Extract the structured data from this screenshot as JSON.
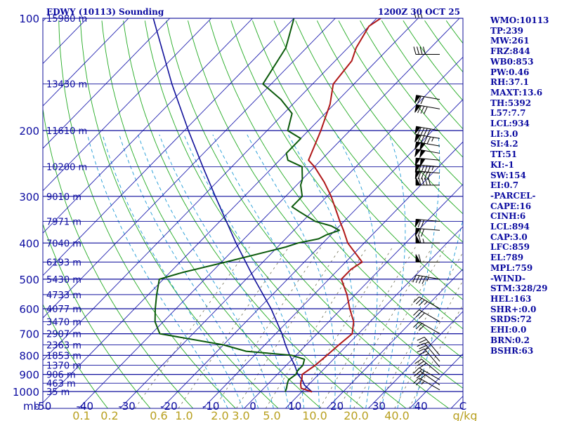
{
  "header": {
    "title": "EDWY (10113) Sounding",
    "time": "1200Z 30 OCT 25"
  },
  "colors": {
    "frame": "#10109a",
    "isobar": "#0e0e9c",
    "isotherm": "#2222b0",
    "dry_adiabat": "#22aa22",
    "moist_adiabat": "#1e9ad6",
    "mixing_ratio": "#6e6e52",
    "temperature": "#b01818",
    "dewpoint": "#0b5a0b",
    "parcel": "#10109a",
    "wind_barb": "#000000",
    "mixing_label": "#b8a020"
  },
  "side_panel": [
    "WMO:10113",
    "TP:239",
    "MW:261",
    "FRZ:844",
    "WB0:853",
    "PW:0.46",
    "RH:37.1",
    "MAXT:13.6",
    "TH:5392",
    "L57:7.7",
    "LCL:934",
    "LI:3.0",
    "SI:4.2",
    "TT:51",
    "KI:-1",
    "SW:154",
    "EI:0.7",
    "-PARCEL-",
    "CAPE:16",
    "CINH:6",
    "LCL:894",
    "CAP:3.0",
    "LFC:859",
    "EL:789",
    "MPL:759",
    "-WIND-",
    "STM:328/29",
    "HEL:163",
    "SHR+:0.0",
    "SRDS:72",
    "EHI:0.0",
    "BRN:0.2",
    "BSHR:63"
  ],
  "chart_data": {
    "type": "skew-t",
    "pressure_unit": "mb",
    "pressure_ticks": [
      100,
      200,
      300,
      400,
      500,
      600,
      700,
      800,
      900,
      1000
    ],
    "temperature_ticks": [
      "-50",
      "-40",
      "-30",
      "-20",
      "-10",
      "0",
      "10",
      "20",
      "30",
      "40",
      "C"
    ],
    "mixing_ratio_labels": [
      "0.1",
      "0.2",
      "0.6",
      "1.0",
      "2.0",
      "3.0",
      "5.0",
      "10.0",
      "20.0",
      "40.0",
      "g/kg"
    ],
    "height_labels": [
      {
        "p": 100,
        "h": "15980 m"
      },
      {
        "p": 150,
        "h": "13430 m"
      },
      {
        "p": 200,
        "h": "11610 m"
      },
      {
        "p": 250,
        "h": "10200 m"
      },
      {
        "p": 300,
        "h": "9010 m"
      },
      {
        "p": 350,
        "h": "7971 m"
      },
      {
        "p": 400,
        "h": "7040 m"
      },
      {
        "p": 450,
        "h": "6193 m"
      },
      {
        "p": 500,
        "h": "5430 m"
      },
      {
        "p": 550,
        "h": "4733 m"
      },
      {
        "p": 600,
        "h": "4077 m"
      },
      {
        "p": 650,
        "h": "3470 m"
      },
      {
        "p": 700,
        "h": "2907 m"
      },
      {
        "p": 750,
        "h": "2363 m"
      },
      {
        "p": 800,
        "h": "1853 m"
      },
      {
        "p": 850,
        "h": "1370 m"
      },
      {
        "p": 900,
        "h": "906 m"
      },
      {
        "p": 950,
        "h": "463 m"
      },
      {
        "p": 1000,
        "h": "35 m"
      }
    ],
    "temperature_profile": [
      [
        1002,
        12.5
      ],
      [
        980,
        9
      ],
      [
        950,
        7.7
      ],
      [
        925,
        7
      ],
      [
        900,
        6
      ],
      [
        850,
        7
      ],
      [
        800,
        7.5
      ],
      [
        750,
        7.9
      ],
      [
        700,
        8.5
      ],
      [
        650,
        6
      ],
      [
        600,
        2
      ],
      [
        550,
        -2
      ],
      [
        500,
        -7
      ],
      [
        470,
        -7
      ],
      [
        450,
        -6
      ],
      [
        400,
        -14
      ],
      [
        370,
        -18
      ],
      [
        350,
        -21
      ],
      [
        300,
        -29
      ],
      [
        275,
        -34
      ],
      [
        250,
        -40
      ],
      [
        240,
        -43
      ],
      [
        200,
        -47
      ],
      [
        170,
        -51
      ],
      [
        150,
        -55
      ],
      [
        130,
        -56
      ],
      [
        120,
        -58
      ],
      [
        105,
        -60
      ],
      [
        95,
        -58
      ]
    ],
    "dewpoint_profile": [
      [
        1002,
        6
      ],
      [
        980,
        5.5
      ],
      [
        950,
        4.5
      ],
      [
        930,
        4
      ],
      [
        900,
        4.5
      ],
      [
        880,
        4
      ],
      [
        850,
        4
      ],
      [
        820,
        3
      ],
      [
        800,
        -1
      ],
      [
        780,
        -13
      ],
      [
        750,
        -20
      ],
      [
        700,
        -38
      ],
      [
        650,
        -42
      ],
      [
        600,
        -45
      ],
      [
        550,
        -48
      ],
      [
        500,
        -51
      ],
      [
        480,
        -47
      ],
      [
        450,
        -39
      ],
      [
        410,
        -28
      ],
      [
        400,
        -26
      ],
      [
        390,
        -22
      ],
      [
        380,
        -21
      ],
      [
        370,
        -19
      ],
      [
        360,
        -22
      ],
      [
        350,
        -27
      ],
      [
        330,
        -33
      ],
      [
        320,
        -36
      ],
      [
        300,
        -36
      ],
      [
        280,
        -39
      ],
      [
        270,
        -40
      ],
      [
        250,
        -43
      ],
      [
        240,
        -48
      ],
      [
        230,
        -50
      ],
      [
        210,
        -50
      ],
      [
        200,
        -55
      ],
      [
        180,
        -58
      ],
      [
        165,
        -64
      ],
      [
        150,
        -72
      ],
      [
        120,
        -75
      ],
      [
        100,
        -80
      ],
      [
        90,
        -81
      ]
    ],
    "parcel_profile": [
      [
        1002,
        12.5
      ],
      [
        960,
        9
      ],
      [
        934,
        7.5
      ],
      [
        900,
        5
      ],
      [
        850,
        2
      ],
      [
        800,
        -1.5
      ],
      [
        750,
        -5
      ],
      [
        700,
        -8.5
      ],
      [
        600,
        -17
      ],
      [
        500,
        -28
      ],
      [
        400,
        -41
      ],
      [
        300,
        -57
      ],
      [
        250,
        -67
      ],
      [
        200,
        -79
      ],
      [
        150,
        -94
      ],
      [
        100,
        -114
      ],
      [
        95,
        -116
      ]
    ],
    "wind_barbs": [
      {
        "p": 990,
        "dir": 300,
        "kt": 25
      },
      {
        "p": 960,
        "dir": 305,
        "kt": 30
      },
      {
        "p": 930,
        "dir": 300,
        "kt": 30
      },
      {
        "p": 900,
        "dir": 310,
        "kt": 30
      },
      {
        "p": 860,
        "dir": 320,
        "kt": 25
      },
      {
        "p": 830,
        "dir": 320,
        "kt": 25
      },
      {
        "p": 800,
        "dir": 320,
        "kt": 25
      },
      {
        "p": 700,
        "dir": 300,
        "kt": 30
      },
      {
        "p": 650,
        "dir": 300,
        "kt": 30
      },
      {
        "p": 600,
        "dir": 300,
        "kt": 35
      },
      {
        "p": 500,
        "dir": 280,
        "kt": 45
      },
      {
        "p": 450,
        "dir": 270,
        "kt": 60
      },
      {
        "p": 400,
        "dir": 270,
        "kt": 65
      },
      {
        "p": 370,
        "dir": 275,
        "kt": 70
      },
      {
        "p": 350,
        "dir": 275,
        "kt": 70
      },
      {
        "p": 280,
        "dir": 270,
        "kt": 90
      },
      {
        "p": 260,
        "dir": 275,
        "kt": 90
      },
      {
        "p": 250,
        "dir": 275,
        "kt": 95
      },
      {
        "p": 240,
        "dir": 275,
        "kt": 100
      },
      {
        "p": 230,
        "dir": 280,
        "kt": 100
      },
      {
        "p": 220,
        "dir": 280,
        "kt": 100
      },
      {
        "p": 210,
        "dir": 280,
        "kt": 95
      },
      {
        "p": 200,
        "dir": 280,
        "kt": 90
      },
      {
        "p": 175,
        "dir": 280,
        "kt": 80
      },
      {
        "p": 165,
        "dir": 280,
        "kt": 70
      },
      {
        "p": 125,
        "dir": 270,
        "kt": 40
      },
      {
        "p": 100,
        "dir": 270,
        "kt": 30
      }
    ]
  }
}
